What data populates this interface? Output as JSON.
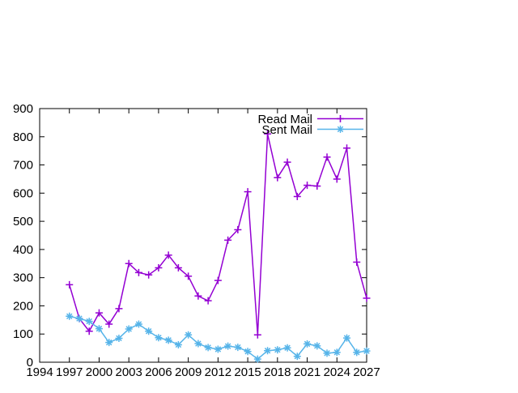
{
  "chart_data": {
    "type": "line",
    "title": "",
    "xlabel": "",
    "ylabel": "",
    "background": "#ffffff",
    "border_color": "#000000",
    "grid": false,
    "legend_position": "top-right-inside",
    "xlim": [
      1994,
      2027
    ],
    "ylim": [
      0,
      900
    ],
    "xticks": [
      1994,
      1997,
      2000,
      2003,
      2006,
      2009,
      2012,
      2015,
      2018,
      2021,
      2024,
      2027
    ],
    "yticks": [
      0,
      100,
      200,
      300,
      400,
      500,
      600,
      700,
      800,
      900
    ],
    "x": [
      1997,
      1998,
      1999,
      2000,
      2001,
      2002,
      2003,
      2004,
      2005,
      2006,
      2007,
      2008,
      2009,
      2010,
      2011,
      2012,
      2013,
      2014,
      2015,
      2016,
      2017,
      2018,
      2019,
      2020,
      2021,
      2022,
      2023,
      2024,
      2025,
      2026,
      2027
    ],
    "series": [
      {
        "name": "Read Mail",
        "color": "#9400d3",
        "marker": "plus",
        "values": [
          275,
          155,
          110,
          175,
          135,
          190,
          350,
          318,
          310,
          335,
          380,
          335,
          305,
          235,
          218,
          290,
          433,
          470,
          605,
          97,
          810,
          655,
          710,
          588,
          628,
          625,
          728,
          650,
          760,
          355,
          227
        ]
      },
      {
        "name": "Sent Mail",
        "color": "#56b4e9",
        "marker": "asterisk",
        "values": [
          163,
          155,
          145,
          119,
          70,
          85,
          118,
          135,
          110,
          87,
          78,
          62,
          97,
          66,
          52,
          46,
          57,
          53,
          38,
          11,
          41,
          44,
          51,
          21,
          65,
          58,
          32,
          35,
          86,
          35,
          40
        ]
      }
    ]
  }
}
